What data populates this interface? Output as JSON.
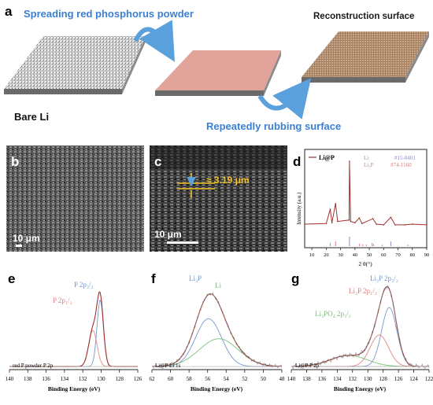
{
  "panels": {
    "a": {
      "label": "a",
      "step1": "Spreading red phosphorus powder",
      "step2": "Repeatedly rubbing surface",
      "left_caption": "Bare Li",
      "right_caption": "Reconstruction  surface"
    },
    "b": {
      "label": "b",
      "scale": "10 μm"
    },
    "c": {
      "label": "c",
      "scale": "10 μm",
      "thickness": "≈ 3.19 μm"
    },
    "d": {
      "label": "d",
      "legend_sample": "Li@P",
      "ref1_name": "Li",
      "ref1_id": "#15-0401",
      "ref2_name": "Li₃P",
      "ref2_id": "#74-1160",
      "xlabel": "2 θ(°)",
      "ylabel": "Intensity (a.u.)",
      "xticks": [
        "10",
        "20",
        "30",
        "40",
        "50",
        "60",
        "70",
        "80",
        "90"
      ]
    },
    "e": {
      "label": "e",
      "peak1": "P 2p₁/₂",
      "peak2": "P 2p₃/₂",
      "sample": "red P powder P 2p",
      "xlabel": "Binding Energy (eV)",
      "xticks": [
        "140",
        "138",
        "136",
        "134",
        "132",
        "130",
        "128",
        "126"
      ]
    },
    "f": {
      "label": "f",
      "peak1": "Li₃P",
      "peak2": "Li",
      "sample": "Li@P Li 1s",
      "xlabel": "Binding Energy (eV)",
      "xticks": [
        "62",
        "60",
        "58",
        "56",
        "54",
        "52",
        "50",
        "48"
      ]
    },
    "g": {
      "label": "g",
      "peak1": "Li₃P 2p₃/₂",
      "peak2": "Li₃P 2p₁/₂",
      "peak3": "Li₃PO₄ 2p₃/₂",
      "sample": "Li@P   P 2p",
      "xlabel": "Binding Energy (eV)",
      "xticks": [
        "140",
        "138",
        "136",
        "134",
        "132",
        "130",
        "128",
        "126",
        "124",
        "122"
      ]
    }
  },
  "colors": {
    "blue_text": "#3b7fd4",
    "arrow_blue": "#5aa0dd",
    "red_line": "#a0302a",
    "pink_ref": "#e07a7a",
    "lavender_ref": "#8c8ccc",
    "fit_green": "#7ac07a",
    "fit_blue": "#7799cc",
    "fit_red": "#e08888",
    "gold": "#f0c020"
  },
  "chart_data": [
    {
      "type": "line",
      "panel": "d",
      "xlabel": "2 θ(°)",
      "ylabel": "Intensity (a.u.)",
      "xlim": [
        5,
        90
      ],
      "series": [
        {
          "name": "Li@P",
          "x": [
            5,
            20,
            22.8,
            24,
            26.5,
            28,
            36,
            36.2,
            37,
            40,
            43,
            45,
            52.5,
            55,
            60,
            65,
            68,
            75,
            80,
            90
          ],
          "y": [
            8,
            9,
            30,
            10,
            38,
            12,
            14,
            100,
            12,
            10,
            17,
            9,
            16,
            8,
            7,
            18,
            7,
            7,
            8,
            7
          ]
        },
        {
          "name": "Li",
          "x": [
            36.2,
            52.0,
            65.0,
            77.0
          ],
          "y": [
            30,
            10,
            15,
            5
          ]
        },
        {
          "name": "Li₃P",
          "x": [
            22.8,
            26.5,
            43.2,
            45.5,
            48,
            53.0,
            59.0
          ],
          "y": [
            10,
            15,
            8,
            6,
            5,
            6,
            4
          ]
        }
      ]
    },
    {
      "type": "line",
      "panel": "e",
      "xlabel": "Binding Energy (eV)",
      "xlim": [
        140,
        126
      ],
      "series": [
        {
          "name": "P 2p₁/₂",
          "x": [
            132,
            131,
            130.9,
            130,
            129
          ],
          "y": [
            0,
            0.4,
            0.48,
            0.1,
            0
          ]
        },
        {
          "name": "P 2p₃/₂",
          "x": [
            131,
            130.4,
            130.1,
            129.6,
            128.5
          ],
          "y": [
            0.05,
            0.7,
            1.0,
            0.4,
            0
          ]
        }
      ]
    },
    {
      "type": "line",
      "panel": "f",
      "xlabel": "Binding Energy (eV)",
      "xlim": [
        62,
        48
      ],
      "series": [
        {
          "name": "Li₃P",
          "x": [
            60,
            58,
            56,
            54,
            52
          ],
          "y": [
            0.08,
            0.4,
            0.75,
            0.35,
            0.05
          ]
        },
        {
          "name": "Li",
          "x": [
            60,
            58,
            55,
            53,
            50
          ],
          "y": [
            0.05,
            0.2,
            0.4,
            0.25,
            0.05
          ]
        }
      ]
    },
    {
      "type": "line",
      "panel": "g",
      "xlabel": "Binding Energy (eV)",
      "xlim": [
        140,
        122
      ],
      "series": [
        {
          "name": "Li₃P 2p₃/₂",
          "x": [
            130,
            128,
            127,
            126,
            124
          ],
          "y": [
            0.05,
            0.5,
            0.8,
            0.5,
            0.05
          ]
        },
        {
          "name": "Li₃P 2p₁/₂",
          "x": [
            131,
            129,
            128,
            127,
            125
          ],
          "y": [
            0.05,
            0.35,
            0.45,
            0.3,
            0.05
          ]
        },
        {
          "name": "Li₃PO₄ 2p₃/₂",
          "x": [
            136,
            134,
            132,
            130,
            128
          ],
          "y": [
            0.03,
            0.1,
            0.15,
            0.1,
            0.03
          ]
        }
      ]
    }
  ]
}
